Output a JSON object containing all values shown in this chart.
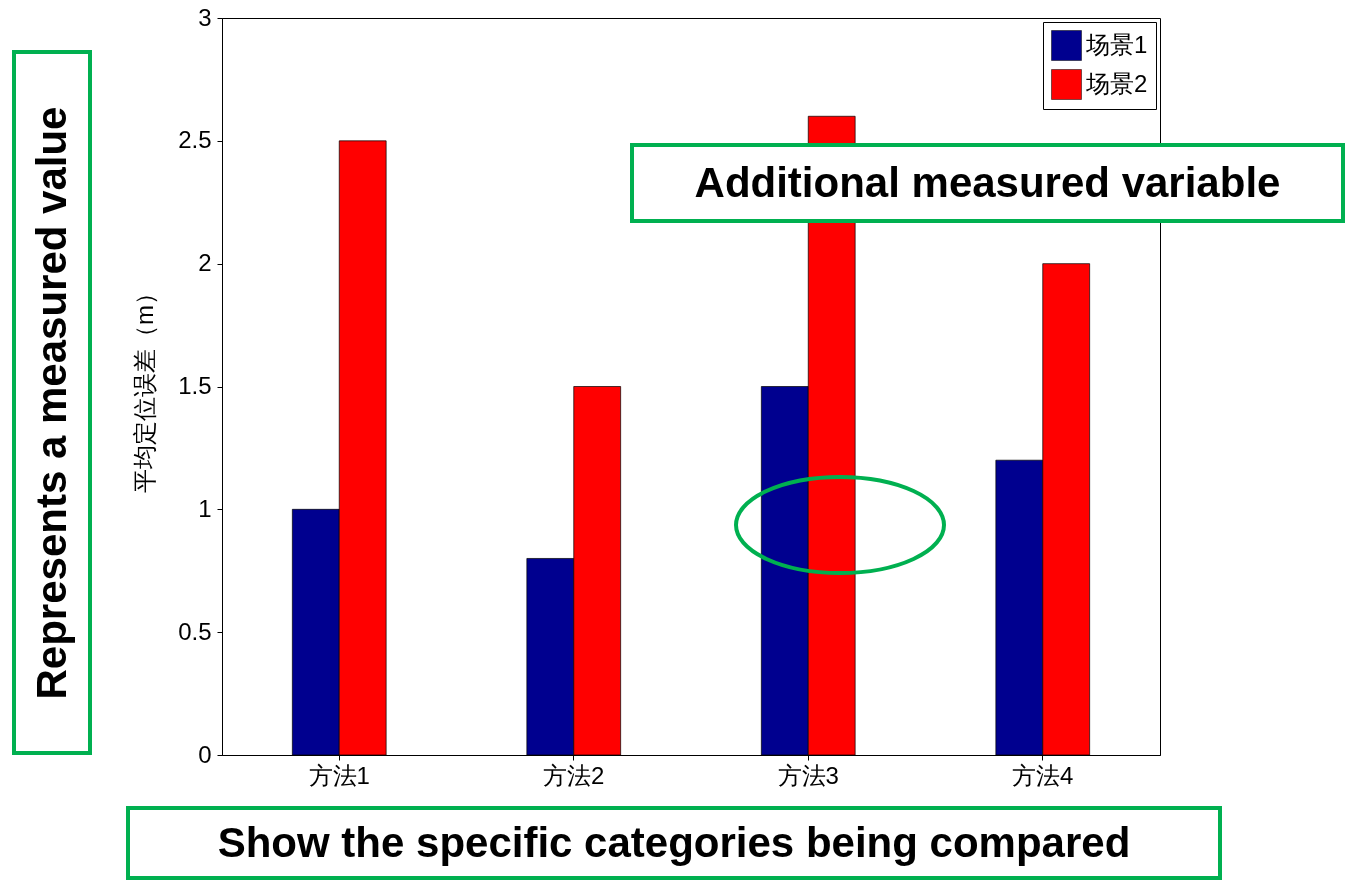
{
  "chart_data": {
    "type": "bar",
    "ylabel": "平均定位误差（m）",
    "categories": [
      "方法1",
      "方法2",
      "方法3",
      "方法4"
    ],
    "series": [
      {
        "name": "场景1",
        "color": "#00008f",
        "values": [
          1,
          0.8,
          1.5,
          1.2
        ]
      },
      {
        "name": "场景2",
        "color": "#ff0000",
        "values": [
          2.5,
          1.5,
          2.6,
          2.0
        ]
      }
    ],
    "ylim": [
      0,
      3
    ],
    "yticks": [
      0,
      0.5,
      1,
      1.5,
      2,
      2.5,
      3
    ],
    "legend": "top right",
    "annotations": [
      "Represents a measured value",
      "Additional measured variable",
      "Show the specific categories being compared"
    ]
  }
}
